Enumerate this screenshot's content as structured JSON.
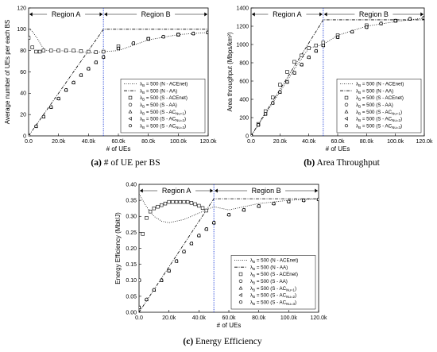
{
  "captions": [
    {
      "letter": "(a)",
      "text": "# of UE per BS"
    },
    {
      "letter": "(b)",
      "text": "Area Throughput"
    },
    {
      "letter": "(c)",
      "text": "Energy Efficiency"
    }
  ],
  "chart_data": [
    {
      "type": "line",
      "xlabel": "# of UEs",
      "ylabel": "Average number of UEs per each BS",
      "xlim": [
        0,
        120000
      ],
      "ylim": [
        0,
        120
      ],
      "xticks": [
        0,
        20000,
        40000,
        60000,
        80000,
        100000,
        120000
      ],
      "xtick_labels": [
        "0.0",
        "20.0k",
        "40.0k",
        "60.0k",
        "80.0k",
        "100.0k",
        "120.0k"
      ],
      "yticks": [
        0,
        20,
        40,
        60,
        80,
        100,
        120
      ],
      "ytick_labels": [
        "0",
        "20",
        "40",
        "60",
        "80",
        "100",
        "120"
      ],
      "region_boundary": 50000,
      "regions": [
        "Region A",
        "Region B"
      ],
      "legend_position": "lower-right",
      "series": [
        {
          "name": "λB = 500 (N - ACEnet)",
          "style": "dotted",
          "x": [
            0,
            2000,
            4000,
            6000,
            8000,
            10000,
            12000,
            14000,
            16000,
            20000,
            26000,
            32000,
            38000,
            44000,
            50000,
            60000,
            80000,
            100000,
            120000
          ],
          "y": [
            100,
            99,
            95,
            91,
            86,
            82,
            80,
            80,
            80,
            80,
            79.5,
            79,
            78.5,
            78,
            79,
            80,
            90,
            95,
            97
          ]
        },
        {
          "name": "λB = 500 (N - AA)",
          "style": "dashdot",
          "x": [
            0,
            50000,
            120000
          ],
          "y": [
            0,
            100,
            100
          ]
        },
        {
          "name": "λB = 500 (S - ACEnet)",
          "style": "square",
          "x": [
            0,
            2500,
            5000,
            7500,
            10000,
            15000,
            20000,
            25000,
            30000,
            35000,
            40000,
            45000,
            50000,
            60000,
            80000,
            100000,
            120000
          ],
          "y": [
            92,
            83,
            79,
            79,
            80,
            80,
            80,
            80,
            80,
            79.5,
            79,
            78.5,
            79,
            84,
            91,
            95,
            97
          ]
        },
        {
          "name": "λB = 500 (S - AA)",
          "style": "circle",
          "x": [
            0,
            5000,
            10000,
            15000,
            20000,
            25000,
            30000,
            35000,
            40000,
            45000,
            50000,
            60000,
            70000,
            80000,
            90000,
            100000,
            110000,
            120000
          ],
          "y": [
            0,
            9,
            18,
            27,
            35,
            43,
            50,
            57,
            63,
            69,
            74,
            82,
            87,
            91,
            93,
            95,
            96,
            97
          ]
        },
        {
          "name": "λB = 500 (S - AC_{Nu=1})",
          "style": "triangle-up",
          "x": [
            0,
            5000,
            10000,
            15000,
            20000,
            25000,
            30000,
            35000,
            40000,
            45000,
            50000,
            60000,
            70000,
            80000,
            90000,
            100000,
            110000,
            120000
          ],
          "y": [
            0,
            9,
            18,
            27,
            35,
            43,
            50,
            57,
            63,
            69,
            74,
            82,
            87,
            91,
            93,
            95,
            96,
            97
          ]
        },
        {
          "name": "λB = 500 (S - AC_{Nu=2})",
          "style": "triangle-left",
          "x": [
            0,
            5000,
            10000,
            15000,
            20000,
            25000,
            30000,
            35000,
            40000,
            45000,
            50000,
            60000,
            70000,
            80000,
            90000,
            100000,
            110000,
            120000
          ],
          "y": [
            0,
            9,
            18,
            27,
            35,
            43,
            50,
            57,
            63,
            69,
            74,
            82,
            87,
            91,
            93,
            95,
            96,
            97
          ]
        },
        {
          "name": "λB = 500 (S - AC_{Nu=3})",
          "style": "hexagon",
          "x": [
            0,
            5000,
            10000,
            15000,
            20000,
            25000,
            30000,
            35000,
            40000,
            45000,
            50000,
            60000,
            70000,
            80000,
            90000,
            100000,
            110000,
            120000
          ],
          "y": [
            0,
            9,
            18,
            27,
            35,
            43,
            50,
            57,
            63,
            69,
            74,
            82,
            87,
            91,
            93,
            95,
            96,
            97
          ]
        }
      ]
    },
    {
      "type": "line",
      "xlabel": "# of UEs",
      "ylabel": "Area throughput (Mbps/km²)",
      "xlim": [
        0,
        120000
      ],
      "ylim": [
        0,
        1400
      ],
      "xticks": [
        0,
        20000,
        40000,
        60000,
        80000,
        100000,
        120000
      ],
      "xtick_labels": [
        "0.0",
        "20.0k",
        "40.0k",
        "60.0k",
        "80.0k",
        "100.0k",
        "120.0k"
      ],
      "yticks": [
        0,
        200,
        400,
        600,
        800,
        1000,
        1200,
        1400
      ],
      "ytick_labels": [
        "0",
        "200",
        "400",
        "600",
        "800",
        "1000",
        "1200",
        "1400"
      ],
      "region_boundary": 50000,
      "regions": [
        "Region A",
        "Region B"
      ],
      "legend_position": "lower-right",
      "series": [
        {
          "name": "λB = 500 (N - ACEnet)",
          "style": "dotted",
          "x": [
            0,
            10000,
            20000,
            30000,
            40000,
            50000,
            60000,
            80000,
            100000,
            120000
          ],
          "y": [
            0,
            240,
            480,
            730,
            960,
            1000,
            1100,
            1200,
            1250,
            1290
          ]
        },
        {
          "name": "λB = 500 (N - AA)",
          "style": "dashdot",
          "x": [
            0,
            50000,
            120000
          ],
          "y": [
            0,
            1270,
            1270
          ]
        },
        {
          "name": "λB = 500 (S - ACEnet)",
          "style": "square",
          "x": [
            0,
            5000,
            10000,
            15000,
            20000,
            25000,
            30000,
            35000,
            40000,
            45000,
            50000,
            60000,
            80000,
            100000,
            120000
          ],
          "y": [
            0,
            130,
            270,
            420,
            560,
            700,
            810,
            880,
            960,
            990,
            1020,
            1100,
            1210,
            1260,
            1290
          ]
        },
        {
          "name": "λB = 500 (S - AA)",
          "style": "circle",
          "x": [
            0,
            5000,
            10000,
            15000,
            20000,
            25000,
            30000,
            35000,
            40000,
            45000,
            50000,
            60000,
            70000,
            80000,
            90000,
            100000,
            110000,
            120000
          ],
          "y": [
            0,
            120,
            240,
            360,
            480,
            590,
            690,
            780,
            860,
            930,
            990,
            1080,
            1140,
            1190,
            1230,
            1260,
            1280,
            1290
          ]
        },
        {
          "name": "λB = 500 (S - AC_{Nu=1})",
          "style": "triangle-up",
          "x": [
            0,
            5000,
            10000,
            15000,
            20000,
            25000,
            30000,
            35000,
            40000,
            45000,
            50000,
            60000,
            70000,
            80000,
            90000,
            100000,
            110000,
            120000
          ],
          "y": [
            0,
            120,
            240,
            360,
            480,
            590,
            690,
            780,
            860,
            930,
            990,
            1080,
            1140,
            1190,
            1230,
            1260,
            1280,
            1290
          ]
        },
        {
          "name": "λB = 500 (S - AC_{Nu=2})",
          "style": "triangle-left",
          "x": [
            0,
            5000,
            10000,
            15000,
            20000,
            25000,
            30000,
            35000,
            40000,
            45000,
            50000,
            60000,
            70000,
            80000,
            90000,
            100000,
            110000,
            120000
          ],
          "y": [
            0,
            120,
            240,
            360,
            480,
            590,
            690,
            780,
            860,
            930,
            990,
            1080,
            1140,
            1190,
            1230,
            1260,
            1280,
            1290
          ]
        },
        {
          "name": "λB = 500 (S - AC_{Nu=3})",
          "style": "hexagon",
          "x": [
            0,
            5000,
            10000,
            15000,
            20000,
            25000,
            30000,
            35000,
            40000,
            45000,
            50000,
            60000,
            70000,
            80000,
            90000,
            100000,
            110000,
            120000
          ],
          "y": [
            0,
            120,
            240,
            360,
            480,
            590,
            690,
            780,
            860,
            930,
            990,
            1080,
            1140,
            1190,
            1230,
            1260,
            1280,
            1290
          ]
        }
      ]
    },
    {
      "type": "line",
      "xlabel": "# of UEs",
      "ylabel": "Energy Efficiency (Mbit/J)",
      "xlim": [
        0,
        120000
      ],
      "ylim": [
        0,
        0.4
      ],
      "xticks": [
        0,
        20000,
        40000,
        60000,
        80000,
        100000,
        120000
      ],
      "xtick_labels": [
        "0.0",
        "20.0k",
        "40.0k",
        "60.0k",
        "80.0k",
        "100.0k",
        "120.0k"
      ],
      "yticks": [
        0,
        0.05,
        0.1,
        0.15,
        0.2,
        0.25,
        0.3,
        0.35,
        0.4
      ],
      "ytick_labels": [
        "0.00",
        "0.05",
        "0.10",
        "0.15",
        "0.20",
        "0.25",
        "0.30",
        "0.35",
        "0.40"
      ],
      "region_boundary": 50000,
      "regions": [
        "Region A",
        "Region B"
      ],
      "legend_position": "lower-right",
      "series": [
        {
          "name": "λB = 500 (N - ACEnet)",
          "style": "dotted",
          "x": [
            0,
            5000,
            10000,
            15000,
            20000,
            25000,
            30000,
            35000,
            40000,
            45000,
            50000,
            60000,
            80000,
            100000,
            120000
          ],
          "y": [
            0.37,
            0.33,
            0.3,
            0.285,
            0.28,
            0.285,
            0.29,
            0.3,
            0.31,
            0.32,
            0.33,
            0.32,
            0.34,
            0.35,
            0.355
          ]
        },
        {
          "name": "λB = 500 (N - AA)",
          "style": "dashdot",
          "x": [
            0,
            50000,
            120000
          ],
          "y": [
            0,
            0.355,
            0.355
          ]
        },
        {
          "name": "λB = 500 (S - ACEnet)",
          "style": "square",
          "x": [
            0,
            2500,
            5000,
            7500,
            10000,
            12500,
            15000,
            17500,
            20000,
            22500,
            25000,
            27500,
            30000,
            32500,
            35000,
            37500,
            40000,
            42500,
            45000
          ],
          "y": [
            0.1,
            0.245,
            0.295,
            0.315,
            0.325,
            0.33,
            0.335,
            0.34,
            0.345,
            0.345,
            0.345,
            0.345,
            0.345,
            0.345,
            0.342,
            0.338,
            0.333,
            0.326,
            0.318
          ]
        },
        {
          "name": "λB = 500 (S - AA)",
          "style": "circle",
          "x": [
            0,
            5000,
            10000,
            15000,
            20000,
            25000,
            30000,
            35000,
            40000,
            45000,
            50000,
            60000,
            70000,
            80000,
            90000,
            100000,
            110000,
            120000
          ],
          "y": [
            0.015,
            0.04,
            0.07,
            0.1,
            0.13,
            0.16,
            0.19,
            0.215,
            0.24,
            0.26,
            0.28,
            0.305,
            0.32,
            0.332,
            0.34,
            0.346,
            0.35,
            0.353
          ]
        },
        {
          "name": "λB = 500 (S - AC_{Nu=1})",
          "style": "triangle-up",
          "x": [
            0,
            5000,
            10000,
            15000,
            20000,
            25000,
            30000,
            35000,
            40000,
            45000,
            50000,
            60000,
            70000,
            80000,
            90000,
            100000,
            110000,
            120000
          ],
          "y": [
            0.015,
            0.04,
            0.07,
            0.1,
            0.13,
            0.16,
            0.19,
            0.215,
            0.24,
            0.26,
            0.28,
            0.305,
            0.32,
            0.332,
            0.34,
            0.346,
            0.35,
            0.353
          ]
        },
        {
          "name": "λB = 500 (S - AC_{Nu=2})",
          "style": "triangle-left",
          "x": [
            0,
            5000,
            10000,
            15000,
            20000,
            25000,
            30000,
            35000,
            40000,
            45000,
            50000,
            60000,
            70000,
            80000,
            90000,
            100000,
            110000,
            120000
          ],
          "y": [
            0.015,
            0.04,
            0.07,
            0.1,
            0.13,
            0.16,
            0.19,
            0.215,
            0.24,
            0.26,
            0.28,
            0.305,
            0.32,
            0.332,
            0.34,
            0.346,
            0.35,
            0.353
          ]
        },
        {
          "name": "λB = 500 (S - AC_{Nu=3})",
          "style": "hexagon",
          "x": [
            0,
            5000,
            10000,
            15000,
            20000,
            25000,
            30000,
            35000,
            40000,
            45000,
            50000,
            60000,
            70000,
            80000,
            90000,
            100000,
            110000,
            120000
          ],
          "y": [
            0.015,
            0.04,
            0.07,
            0.1,
            0.13,
            0.16,
            0.19,
            0.215,
            0.24,
            0.26,
            0.28,
            0.305,
            0.32,
            0.332,
            0.34,
            0.346,
            0.35,
            0.353
          ]
        }
      ]
    }
  ]
}
